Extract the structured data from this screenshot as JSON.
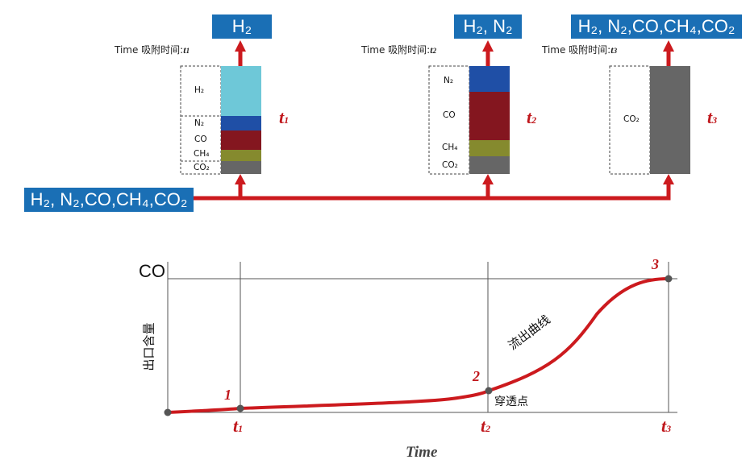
{
  "top_boxes": {
    "feed": "H₂, N₂,CO,CH₄,CO₂",
    "out1": "H₂",
    "out2": "H₂, N₂",
    "out3": "H₂, N₂,CO,CH₄,CO₂"
  },
  "time_labels": {
    "l1_prefix": "Time 吸附时间:",
    "l1_t": "t",
    "l1_sub": "1",
    "l2_prefix": "Time 吸附时间:",
    "l2_t": "t",
    "l2_sub": "2",
    "l3_prefix": "Time 吸附时间:",
    "l3_t": "t",
    "l3_sub": "3"
  },
  "column1": {
    "h2": "H₂",
    "n2": "N₂",
    "co": "CO",
    "ch4": "CH₄",
    "co2": "CO₂"
  },
  "column2": {
    "n2": "N₂",
    "co": "CO",
    "ch4": "CH₄",
    "co2": "CO₂"
  },
  "column3": {
    "co2": "CO₂"
  },
  "column_t": [
    {
      "t": "t",
      "sub": "1"
    },
    {
      "t": "t",
      "sub": "2"
    },
    {
      "t": "t",
      "sub": "3"
    }
  ],
  "colors": {
    "h2": "#6ec8d8",
    "n2": "#1f4fa6",
    "co": "#84161f",
    "ch4": "#858a2e",
    "co2": "#666666",
    "arrow": "#cc1a1e",
    "box": "#1a6fb5"
  },
  "graph": {
    "y_top_label": "CO",
    "y_axis_label": "出口含量",
    "x_axis_label": "Time",
    "curve_label": "流出曲线",
    "breakthrough_label": "穿透点",
    "points": [
      "1",
      "2",
      "3"
    ],
    "x_ticks": [
      {
        "t": "t",
        "sub": "1"
      },
      {
        "t": "t",
        "sub": "2"
      },
      {
        "t": "t",
        "sub": "3"
      }
    ]
  }
}
